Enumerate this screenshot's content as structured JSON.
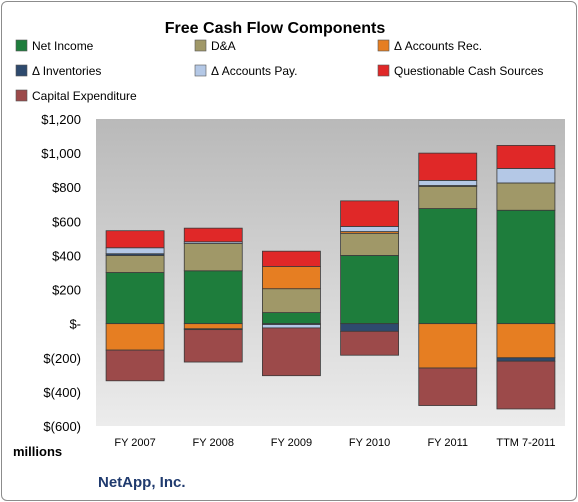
{
  "chart_data": {
    "type": "bar",
    "title": "Free Cash Flow Components",
    "categories": [
      "FY 2007",
      "FY 2008",
      "FY 2009",
      "FY 2010",
      "FY 2011",
      "TTM 7-2011"
    ],
    "unit_label": "millions",
    "company": "NetApp, Inc.",
    "ylim": [
      -600,
      1200
    ],
    "yticks": [
      -600,
      -400,
      -200,
      0,
      200,
      400,
      600,
      800,
      1000,
      1200
    ],
    "ytick_labels": [
      "$(600)",
      "$(400)",
      "$(200)",
      "$-",
      "$200",
      "$400",
      "$600",
      "$800",
      "$1,000",
      "$1,200"
    ],
    "grid": false,
    "legend_position": "top",
    "series": [
      {
        "name": "Net Income",
        "color": "#1e7d3c",
        "values": [
          300,
          310,
          65,
          400,
          675,
          665
        ]
      },
      {
        "name": "D&A",
        "color": "#a09868",
        "values": [
          100,
          160,
          140,
          130,
          130,
          160
        ]
      },
      {
        "name": "Δ Accounts Rec.",
        "color": "#e67e22",
        "values": [
          -155,
          -30,
          130,
          10,
          -260,
          -200
        ]
      },
      {
        "name": "Δ Inventories",
        "color": "#2e4a6e",
        "values": [
          10,
          -5,
          -5,
          -45,
          5,
          -20
        ]
      },
      {
        "name": "Δ Accounts Pay.",
        "color": "#b4c8e6",
        "values": [
          35,
          10,
          -20,
          30,
          30,
          85
        ]
      },
      {
        "name": "Questionable Cash Sources",
        "color": "#e02828",
        "values": [
          100,
          80,
          90,
          150,
          160,
          135
        ]
      },
      {
        "name": "Capital Expenditure",
        "color": "#9c4a4a",
        "values": [
          -180,
          -190,
          -280,
          -140,
          -220,
          -280
        ]
      }
    ]
  }
}
